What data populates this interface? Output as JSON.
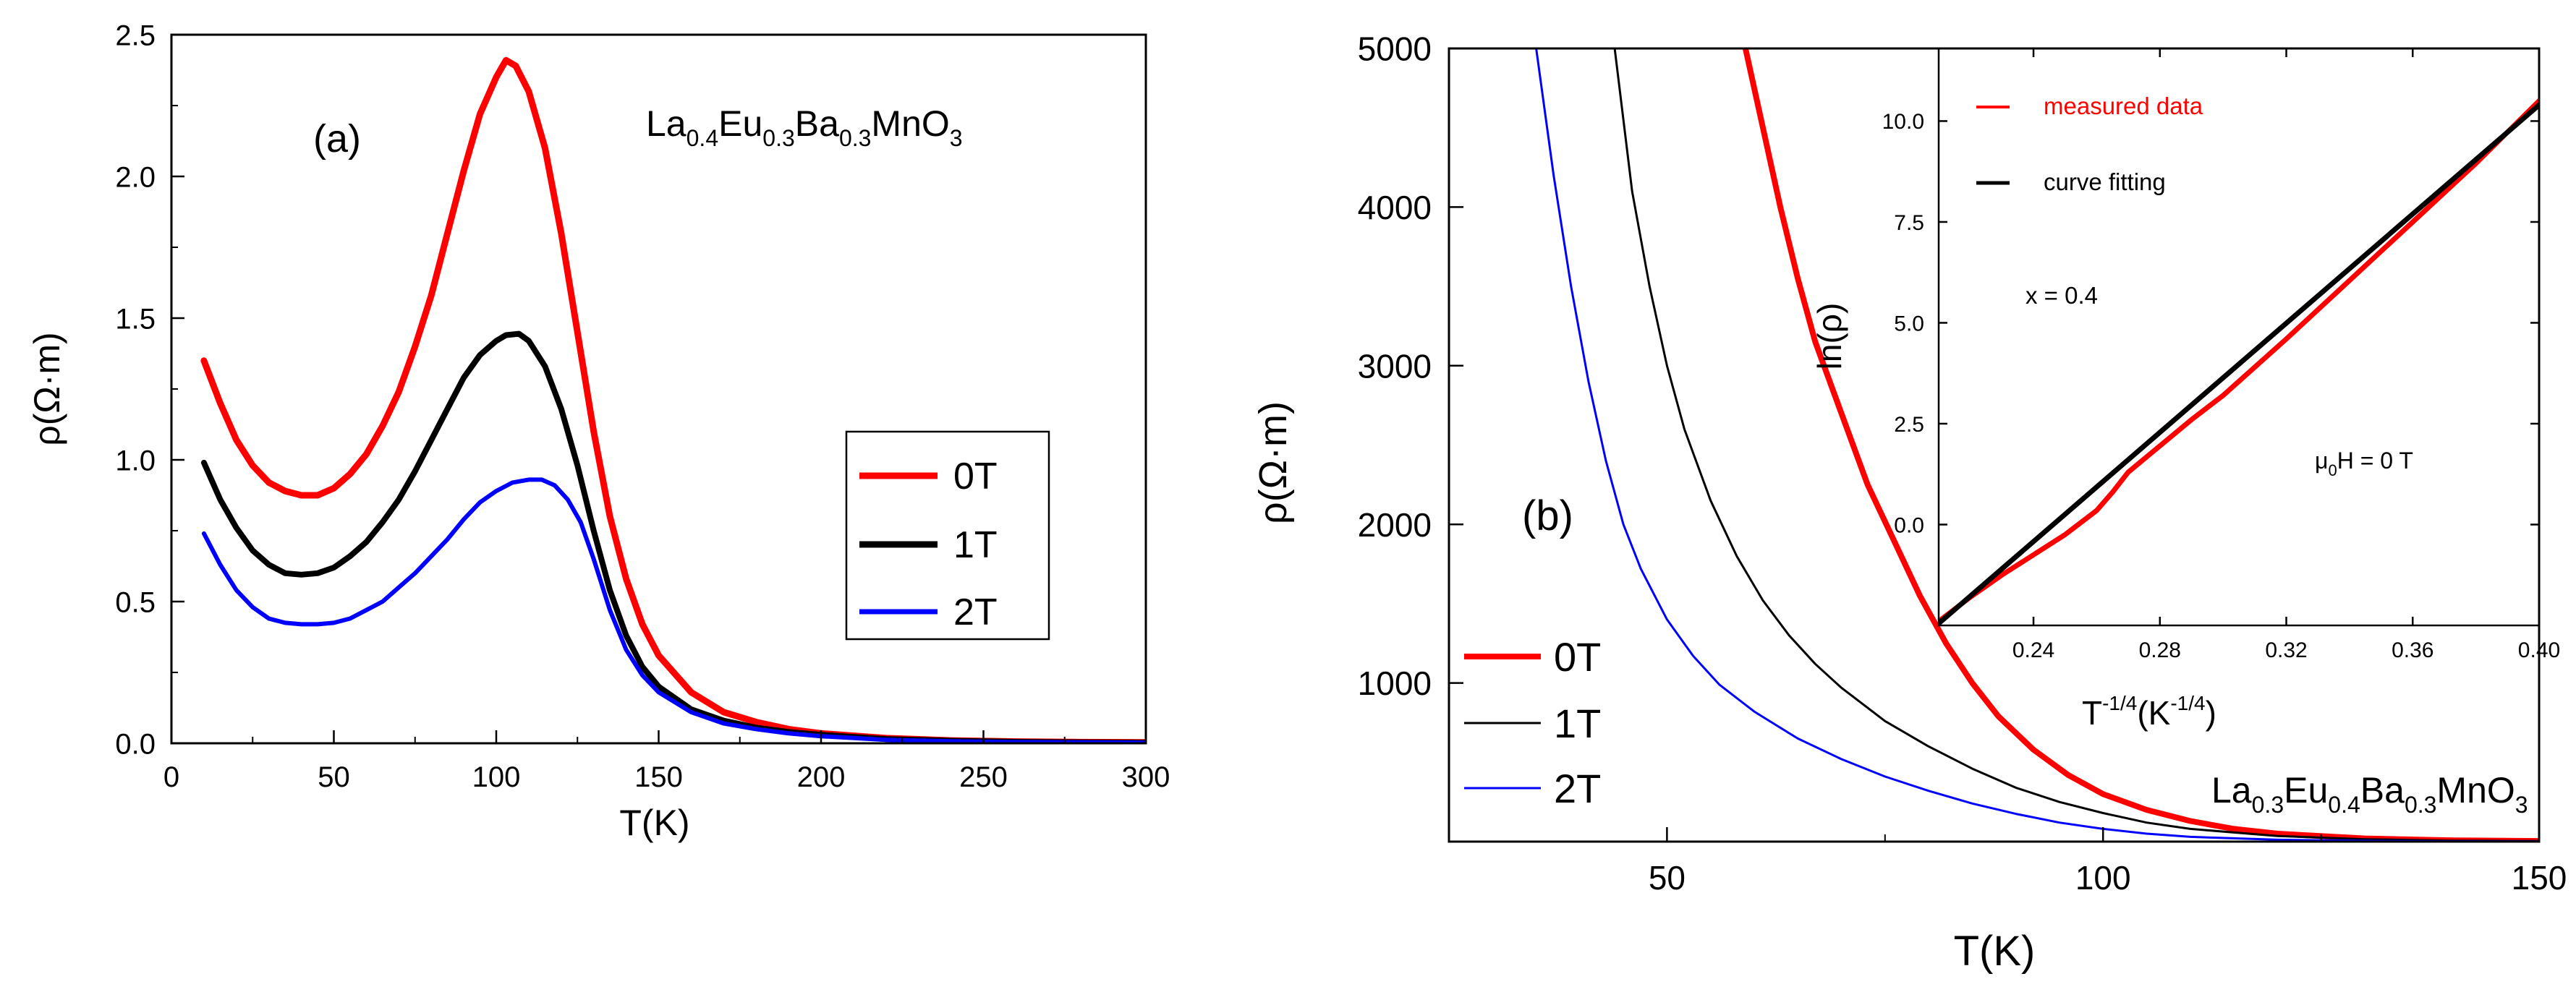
{
  "chart_data": [
    {
      "panel_label": "(a)",
      "type": "line",
      "xlabel": "T(K)",
      "ylabel": "ρ(Ω·m)",
      "xlim": [
        0,
        300
      ],
      "ylim": [
        0,
        2.5
      ],
      "xticks": [
        0,
        50,
        100,
        150,
        200,
        250,
        300
      ],
      "xtick_labels": [
        "0",
        "50",
        "100",
        "150",
        "200",
        "250",
        "300"
      ],
      "yticks": [
        0,
        0.5,
        1.0,
        1.5,
        2.0,
        2.5
      ],
      "ytick_labels": [
        "0.0",
        "0.5",
        "1.0",
        "1.5",
        "2.0",
        "2.5"
      ],
      "compound": {
        "parts": [
          {
            "t": "La",
            "sub": false
          },
          {
            "t": "0.4",
            "sub": true
          },
          {
            "t": "Eu",
            "sub": false
          },
          {
            "t": "0.3",
            "sub": true
          },
          {
            "t": "Ba",
            "sub": false
          },
          {
            "t": "0.3",
            "sub": true
          },
          {
            "t": "MnO",
            "sub": false
          },
          {
            "t": "3",
            "sub": true
          }
        ]
      },
      "legend": {
        "position": "center-right",
        "entries": [
          "0T",
          "1T",
          "2T"
        ]
      },
      "series": [
        {
          "name": "0T",
          "color": "#ff0000",
          "x": [
            10,
            15,
            20,
            25,
            30,
            35,
            40,
            45,
            50,
            55,
            60,
            65,
            70,
            75,
            80,
            85,
            90,
            95,
            100,
            103,
            106,
            110,
            115,
            120,
            125,
            130,
            135,
            140,
            145,
            150,
            160,
            170,
            180,
            190,
            200,
            220,
            240,
            260,
            280,
            300
          ],
          "y": [
            1.35,
            1.2,
            1.07,
            0.98,
            0.92,
            0.89,
            0.875,
            0.875,
            0.9,
            0.95,
            1.02,
            1.12,
            1.24,
            1.4,
            1.58,
            1.8,
            2.02,
            2.22,
            2.35,
            2.41,
            2.39,
            2.3,
            2.1,
            1.8,
            1.45,
            1.1,
            0.8,
            0.58,
            0.42,
            0.31,
            0.18,
            0.11,
            0.075,
            0.05,
            0.035,
            0.018,
            0.01,
            0.006,
            0.004,
            0.003
          ]
        },
        {
          "name": "1T",
          "color": "#000000",
          "x": [
            10,
            15,
            20,
            25,
            30,
            35,
            40,
            45,
            50,
            55,
            60,
            65,
            70,
            75,
            80,
            85,
            90,
            95,
            100,
            103,
            107,
            110,
            115,
            120,
            125,
            130,
            135,
            140,
            145,
            150,
            160,
            170,
            180,
            190,
            200,
            220,
            240,
            260,
            280,
            300
          ],
          "y": [
            0.99,
            0.86,
            0.76,
            0.68,
            0.63,
            0.6,
            0.595,
            0.6,
            0.62,
            0.66,
            0.71,
            0.78,
            0.86,
            0.96,
            1.07,
            1.18,
            1.29,
            1.37,
            1.42,
            1.44,
            1.445,
            1.42,
            1.33,
            1.18,
            0.98,
            0.75,
            0.54,
            0.38,
            0.27,
            0.2,
            0.12,
            0.08,
            0.055,
            0.04,
            0.03,
            0.015,
            0.009,
            0.005,
            0.003,
            0.002
          ]
        },
        {
          "name": "2T",
          "color": "#0000ff",
          "x": [
            10,
            15,
            20,
            25,
            30,
            35,
            40,
            45,
            50,
            55,
            60,
            65,
            70,
            75,
            80,
            85,
            90,
            95,
            100,
            105,
            110,
            114,
            118,
            122,
            126,
            130,
            135,
            140,
            145,
            150,
            160,
            170,
            180,
            190,
            200,
            220,
            240,
            260,
            280,
            300
          ],
          "y": [
            0.74,
            0.63,
            0.54,
            0.48,
            0.44,
            0.425,
            0.42,
            0.42,
            0.425,
            0.44,
            0.47,
            0.5,
            0.55,
            0.6,
            0.66,
            0.72,
            0.79,
            0.85,
            0.89,
            0.92,
            0.93,
            0.93,
            0.91,
            0.86,
            0.78,
            0.65,
            0.47,
            0.33,
            0.24,
            0.18,
            0.11,
            0.07,
            0.05,
            0.035,
            0.025,
            0.012,
            0.007,
            0.004,
            0.003,
            0.002
          ]
        }
      ]
    },
    {
      "panel_label": "(b)",
      "type": "line",
      "xlabel": "T(K)",
      "ylabel": "ρ(Ω·m)",
      "xlim": [
        25,
        150
      ],
      "ylim": [
        0,
        5000
      ],
      "xticks": [
        50,
        100,
        150
      ],
      "xtick_labels": [
        "50",
        "100",
        "150"
      ],
      "yticks": [
        1000,
        2000,
        3000,
        4000,
        5000
      ],
      "ytick_labels": [
        "1000",
        "2000",
        "3000",
        "4000",
        "5000"
      ],
      "compound": {
        "parts": [
          {
            "t": "La",
            "sub": false
          },
          {
            "t": "0.3",
            "sub": true
          },
          {
            "t": "Eu",
            "sub": false
          },
          {
            "t": "0.4",
            "sub": true
          },
          {
            "t": "Ba",
            "sub": false
          },
          {
            "t": "0.3",
            "sub": true
          },
          {
            "t": "MnO",
            "sub": false
          },
          {
            "t": "3",
            "sub": true
          }
        ]
      },
      "legend": {
        "position": "bottom-left",
        "entries": [
          "0T",
          "1T",
          "2T"
        ]
      },
      "series": [
        {
          "name": "0T",
          "color": "#ff0000",
          "x": [
            59,
            61,
            63,
            65,
            67,
            70,
            73,
            76,
            79,
            82,
            85,
            88,
            92,
            96,
            100,
            105,
            110,
            115,
            120,
            130,
            140,
            150
          ],
          "y": [
            5000,
            4500,
            4000,
            3550,
            3150,
            2700,
            2250,
            1900,
            1550,
            1250,
            1000,
            790,
            580,
            420,
            300,
            200,
            130,
            80,
            50,
            20,
            8,
            4
          ]
        },
        {
          "name": "1T",
          "color": "#000000",
          "x": [
            44,
            46,
            48,
            50,
            52,
            55,
            58,
            61,
            64,
            67,
            70,
            75,
            80,
            85,
            90,
            95,
            100,
            105,
            110,
            120,
            130,
            140,
            150
          ],
          "y": [
            5000,
            4100,
            3500,
            3000,
            2600,
            2150,
            1800,
            1520,
            1300,
            1120,
            970,
            760,
            600,
            460,
            340,
            250,
            180,
            120,
            80,
            35,
            15,
            6,
            3
          ]
        },
        {
          "name": "2T",
          "color": "#0000ff",
          "x": [
            35,
            37,
            39,
            41,
            43,
            45,
            47,
            50,
            53,
            56,
            60,
            65,
            70,
            75,
            80,
            85,
            90,
            95,
            100,
            105,
            110,
            120,
            130,
            140,
            150
          ],
          "y": [
            5000,
            4200,
            3500,
            2900,
            2400,
            2000,
            1720,
            1400,
            1170,
            990,
            820,
            650,
            520,
            410,
            320,
            240,
            175,
            120,
            80,
            50,
            30,
            12,
            5,
            2,
            1
          ]
        }
      ],
      "inset": {
        "type": "line",
        "xlabel_base": "T",
        "xlabel_exp": "-1/4",
        "xlabel_unit_open": "(K",
        "xlabel_unit_exp": "-1/4",
        "xlabel_unit_close": ")",
        "ylabel": "ln(ρ)",
        "xlim": [
          0.21,
          0.4
        ],
        "ylim": [
          -2.5,
          11.8
        ],
        "xticks": [
          0.24,
          0.28,
          0.32,
          0.36,
          0.4
        ],
        "xtick_labels": [
          "0.24",
          "0.28",
          "0.32",
          "0.36",
          "0.40"
        ],
        "yticks": [
          0,
          2.5,
          5.0,
          7.5,
          10.0
        ],
        "ytick_labels": [
          "0.0",
          "2.5",
          "5.0",
          "7.5",
          "10.0"
        ],
        "annotation_x": "x = 0.4",
        "annotation_field_mu": "μ",
        "annotation_field_sub": "0",
        "annotation_field_rest": "H = 0 T",
        "legend": {
          "position": "top-left",
          "entries": [
            "measured data",
            "curve fitting"
          ]
        },
        "series": [
          {
            "name": "measured data",
            "color": "#ff0000",
            "x": [
              0.21,
              0.22,
              0.23,
              0.24,
              0.25,
              0.255,
              0.26,
              0.265,
              0.27,
              0.28,
              0.29,
              0.3,
              0.32,
              0.34,
              0.36,
              0.38,
              0.4
            ],
            "y": [
              -2.4,
              -1.8,
              -1.25,
              -0.75,
              -0.25,
              0.05,
              0.35,
              0.8,
              1.3,
              1.95,
              2.6,
              3.2,
              4.6,
              6.05,
              7.5,
              8.95,
              10.5
            ]
          },
          {
            "name": "curve fitting",
            "color": "#000000",
            "x": [
              0.21,
              0.4
            ],
            "y": [
              -2.45,
              10.4
            ]
          }
        ]
      }
    }
  ]
}
